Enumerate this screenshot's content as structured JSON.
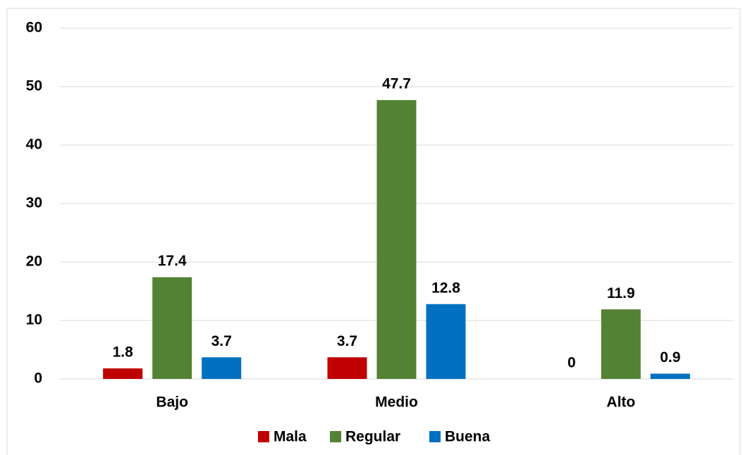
{
  "chart_data": {
    "type": "bar",
    "categories": [
      "Bajo",
      "Medio",
      "Alto"
    ],
    "series": [
      {
        "name": "Mala",
        "color": "#c00000",
        "values": [
          1.8,
          3.7,
          0
        ]
      },
      {
        "name": "Regular",
        "color": "#548235",
        "values": [
          17.4,
          47.7,
          11.9
        ]
      },
      {
        "name": "Buena",
        "color": "#0070c0",
        "values": [
          3.7,
          12.8,
          0.9
        ]
      }
    ],
    "ylim": [
      0,
      60
    ],
    "yticks": [
      0,
      10,
      20,
      30,
      40,
      50,
      60
    ],
    "grid": true,
    "legend": "bottom"
  }
}
